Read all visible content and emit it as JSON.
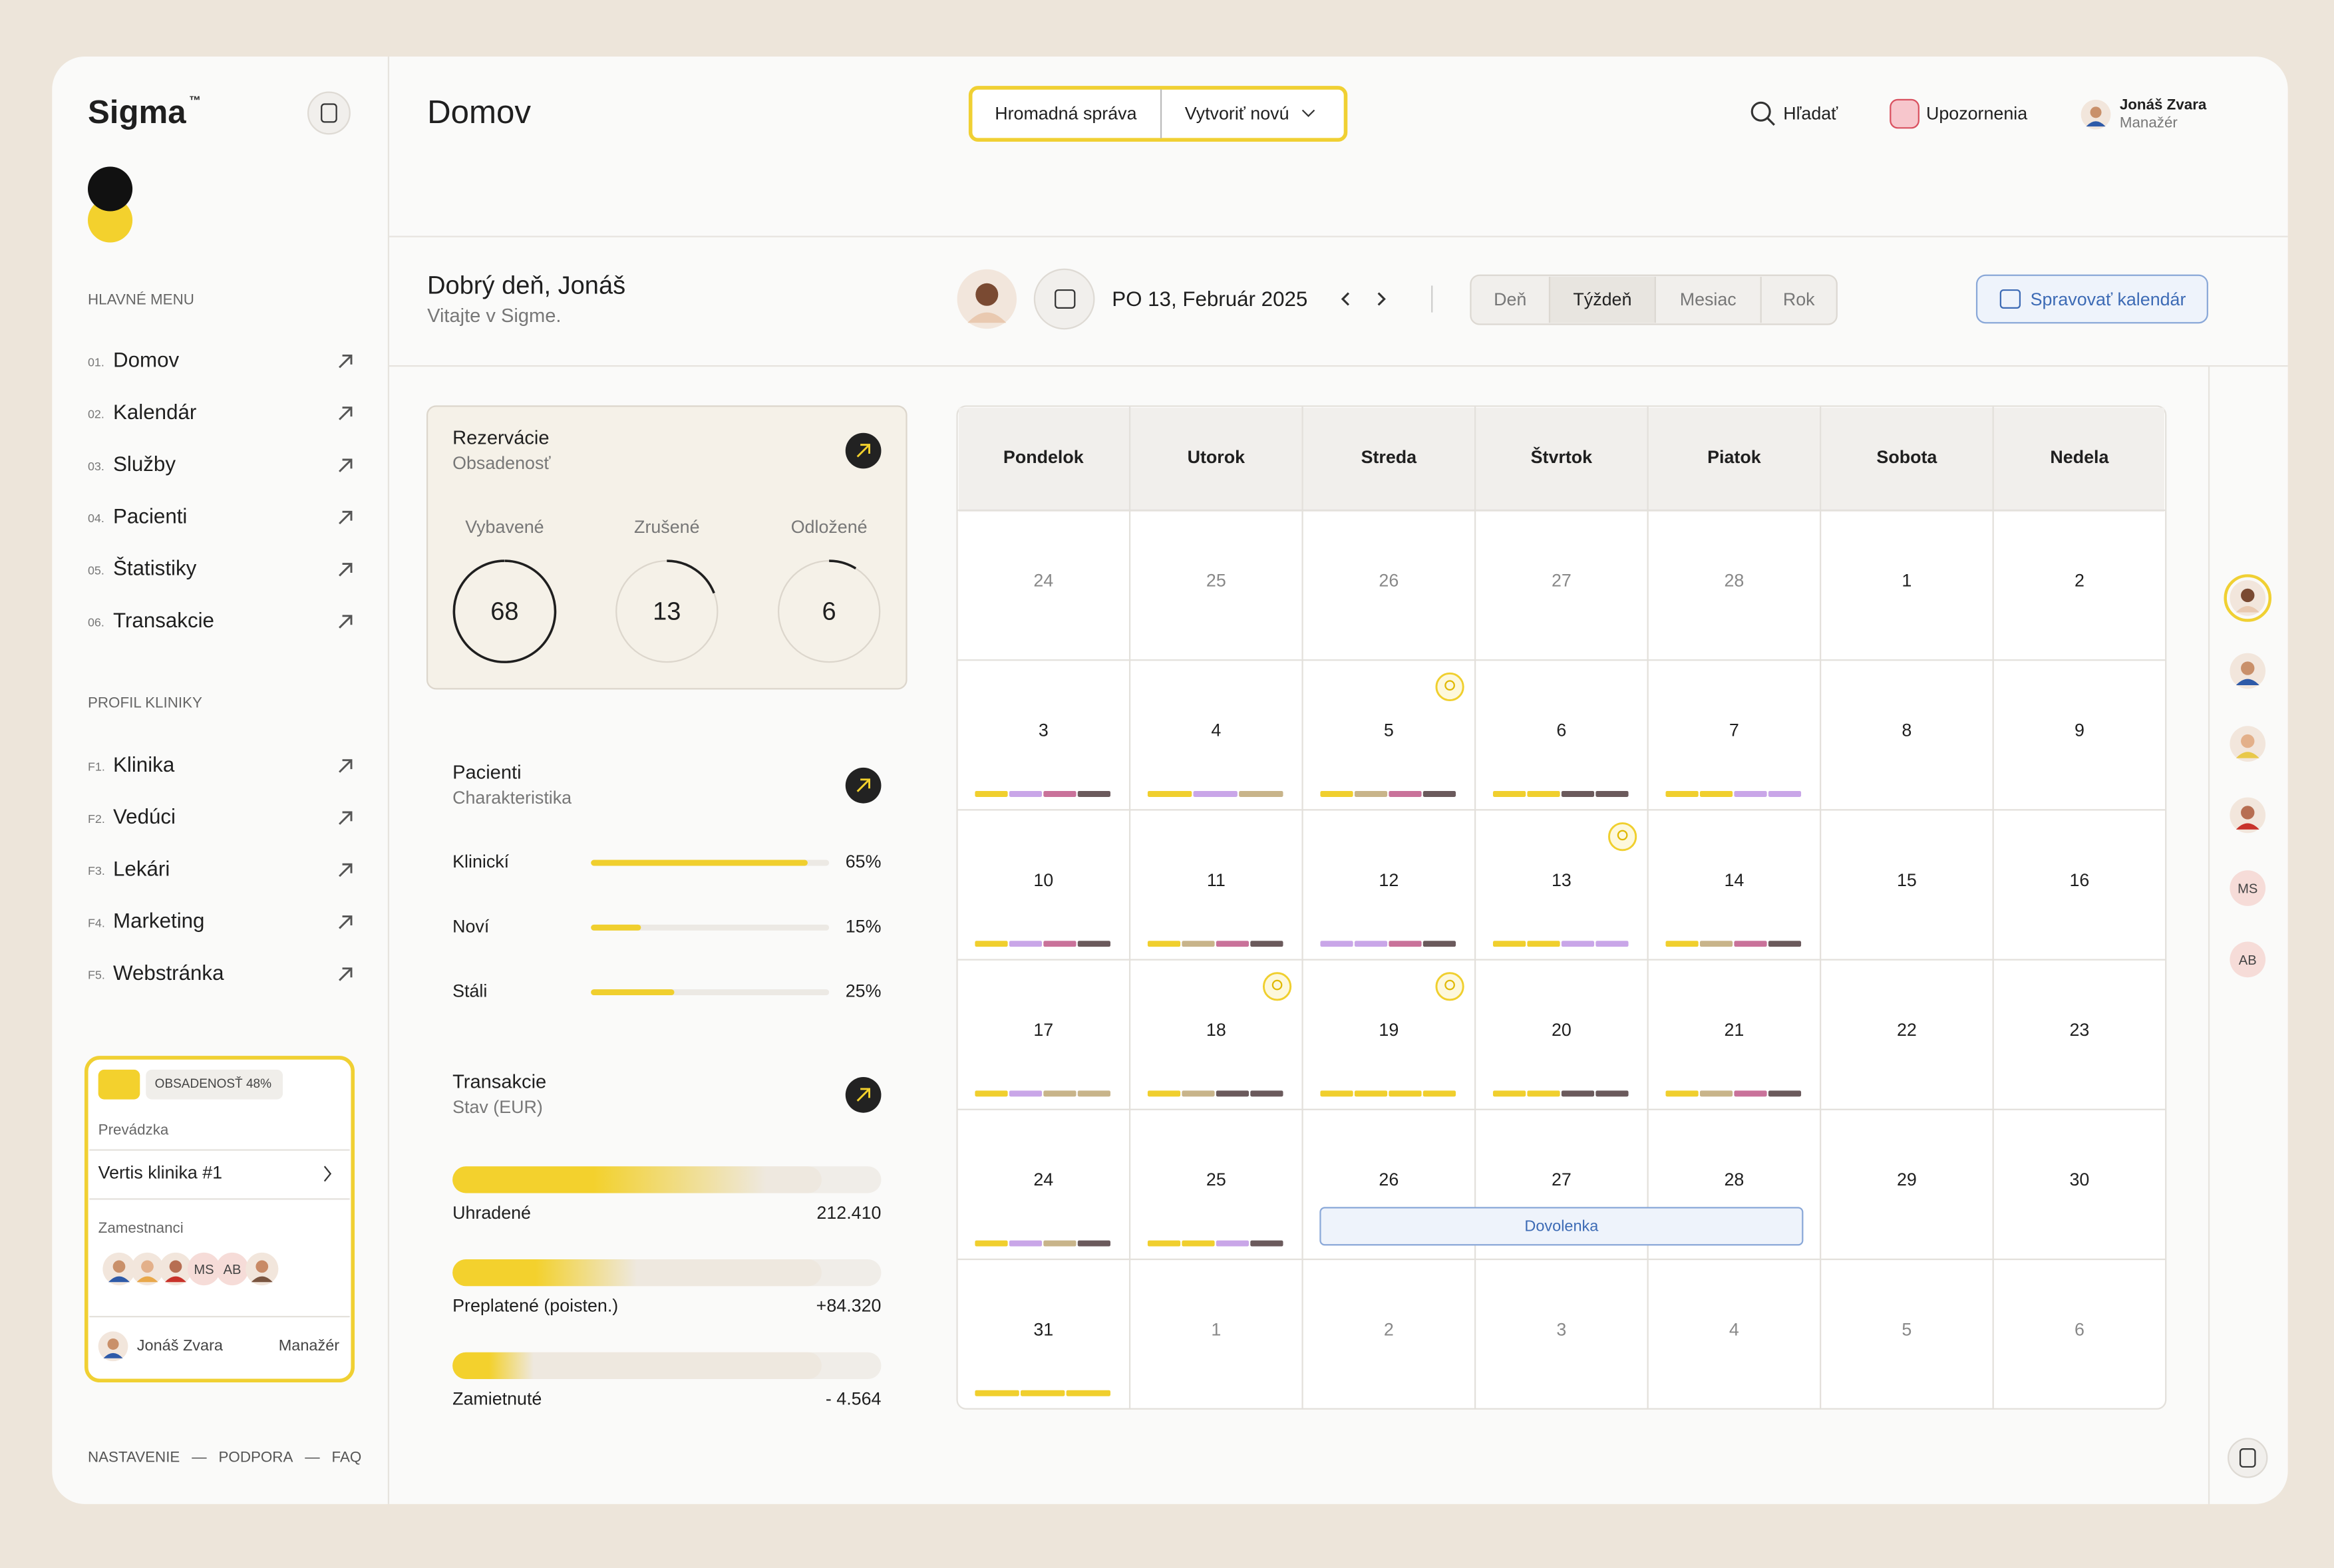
{
  "sidebar": {
    "brand": "Sigma",
    "trademark": "™",
    "main_menu_title": "HLAVNÉ MENU",
    "main_menu": [
      {
        "index": "01.",
        "label": "Domov"
      },
      {
        "index": "02.",
        "label": "Kalendár"
      },
      {
        "index": "03.",
        "label": "Služby"
      },
      {
        "index": "04.",
        "label": "Pacienti"
      },
      {
        "index": "05.",
        "label": "Štatistiky"
      },
      {
        "index": "06.",
        "label": "Transakcie"
      }
    ],
    "profile_title": "PROFIL KLINIKY",
    "profile_menu": [
      {
        "index": "F1.",
        "label": "Klinika"
      },
      {
        "index": "F2.",
        "label": "Vedúci"
      },
      {
        "index": "F3.",
        "label": "Lekári"
      },
      {
        "index": "F4.",
        "label": "Marketing"
      },
      {
        "index": "F5.",
        "label": "Webstránka"
      }
    ],
    "clinic_card": {
      "badge": "OBSADENOSŤ 48%",
      "operation_label": "Prevádzka",
      "operation": "Vertis klinika #1",
      "staff_label": "Zamestnanci",
      "staff_initials": [
        "MS",
        "AB"
      ],
      "user": "Jonáš Zvara",
      "role": "Manažér"
    },
    "footer": [
      "NASTAVENIE",
      "—",
      "PODPORA",
      "—",
      "FAQ"
    ]
  },
  "header": {
    "title": "Domov",
    "actions": [
      "Hromadná správa",
      "Vytvoriť novú"
    ],
    "search": "Hľadať",
    "notifications": "Upozornenia",
    "user": {
      "name": "Jonáš Zvara",
      "role": "Manažér"
    }
  },
  "greeting": {
    "title": "Dobrý deň, Jonáš",
    "subtitle": "Vitajte v Sigme."
  },
  "date_nav": {
    "date": "PO 13, Február 2025",
    "views": [
      "Deň",
      "Týždeň",
      "Mesiac",
      "Rok"
    ],
    "selected_view": 1,
    "manage": "Spravovať kalendár"
  },
  "reservations": {
    "title": "Rezervácie",
    "subtitle": "Obsadenosť",
    "items": [
      {
        "label": "Vybavené",
        "value": 68
      },
      {
        "label": "Zrušené",
        "value": 13
      },
      {
        "label": "Odložené",
        "value": 6
      }
    ]
  },
  "patients": {
    "title": "Pacienti",
    "subtitle": "Charakteristika",
    "items": [
      {
        "label": "Klinickí",
        "value": 65,
        "value_label": "65%"
      },
      {
        "label": "Noví",
        "value": 15,
        "value_label": "15%"
      },
      {
        "label": "Stáli",
        "value": 25,
        "value_label": "25%"
      }
    ]
  },
  "transactions": {
    "title": "Transakcie",
    "subtitle": "Stav (EUR)",
    "items": [
      {
        "label": "Uhradené",
        "amount": "212.410"
      },
      {
        "label": "Preplatené (poisten.)",
        "amount": "+84.320"
      },
      {
        "label": "Zamietnuté",
        "amount": "- 4.564"
      }
    ]
  },
  "calendar": {
    "weekdays": [
      "Pondelok",
      "Utorok",
      "Streda",
      "Štvrtok",
      "Piatok",
      "Sobota",
      "Nedela"
    ],
    "weeks": [
      [
        24,
        25,
        26,
        27,
        28,
        1,
        2
      ],
      [
        3,
        4,
        5,
        6,
        7,
        8,
        9
      ],
      [
        10,
        11,
        12,
        13,
        14,
        15,
        16
      ],
      [
        17,
        18,
        19,
        20,
        21,
        22,
        23
      ],
      [
        24,
        25,
        26,
        27,
        28,
        29,
        30
      ],
      [
        31,
        1,
        2,
        3,
        4,
        5,
        6
      ]
    ],
    "event": "Dovolenka",
    "right_avatars": [
      "MS",
      "AB"
    ]
  }
}
